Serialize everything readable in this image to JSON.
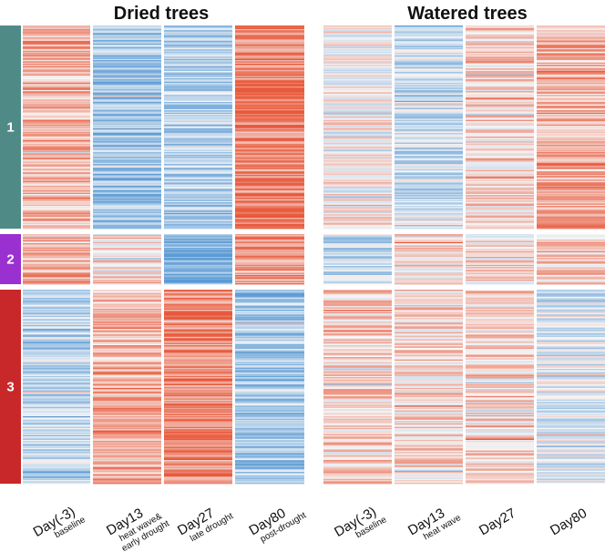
{
  "chart_data": {
    "type": "heatmap",
    "panels": [
      {
        "title": "Dried trees",
        "columns": [
          {
            "label": "Day(-3)",
            "sublabel": [
              "baseline"
            ]
          },
          {
            "label": "Day13",
            "sublabel": [
              "heat wave&",
              "early drought"
            ]
          },
          {
            "label": "Day27",
            "sublabel": [
              "late drought"
            ]
          },
          {
            "label": "Day80",
            "sublabel": [
              "post-drought"
            ]
          }
        ],
        "cluster_levels": [
          [
            0.45,
            -0.55,
            -0.45,
            0.75
          ],
          [
            0.4,
            0.15,
            -0.85,
            0.55
          ],
          [
            -0.35,
            0.45,
            0.7,
            -0.5
          ]
        ]
      },
      {
        "title": "Watered trees",
        "columns": [
          {
            "label": "Day(-3)",
            "sublabel": [
              "baseline"
            ]
          },
          {
            "label": "Day13",
            "sublabel": [
              "heat wave"
            ]
          },
          {
            "label": "Day27",
            "sublabel": []
          },
          {
            "label": "Day80",
            "sublabel": []
          }
        ],
        "cluster_levels": [
          [
            0.05,
            -0.3,
            0.2,
            0.45
          ],
          [
            -0.3,
            0.15,
            0.15,
            0.3
          ],
          [
            0.25,
            0.2,
            0.2,
            -0.15
          ]
        ]
      }
    ],
    "clusters": [
      {
        "label": "1",
        "color": "#4f8a87",
        "rows": 170
      },
      {
        "label": "2",
        "color": "#9b30d0",
        "rows": 44
      },
      {
        "label": "3",
        "color": "#c8282a",
        "rows": 164
      }
    ],
    "colorscale": {
      "low": "#5b9bd5",
      "mid": "#f7f7f7",
      "high": "#e8583a"
    }
  }
}
